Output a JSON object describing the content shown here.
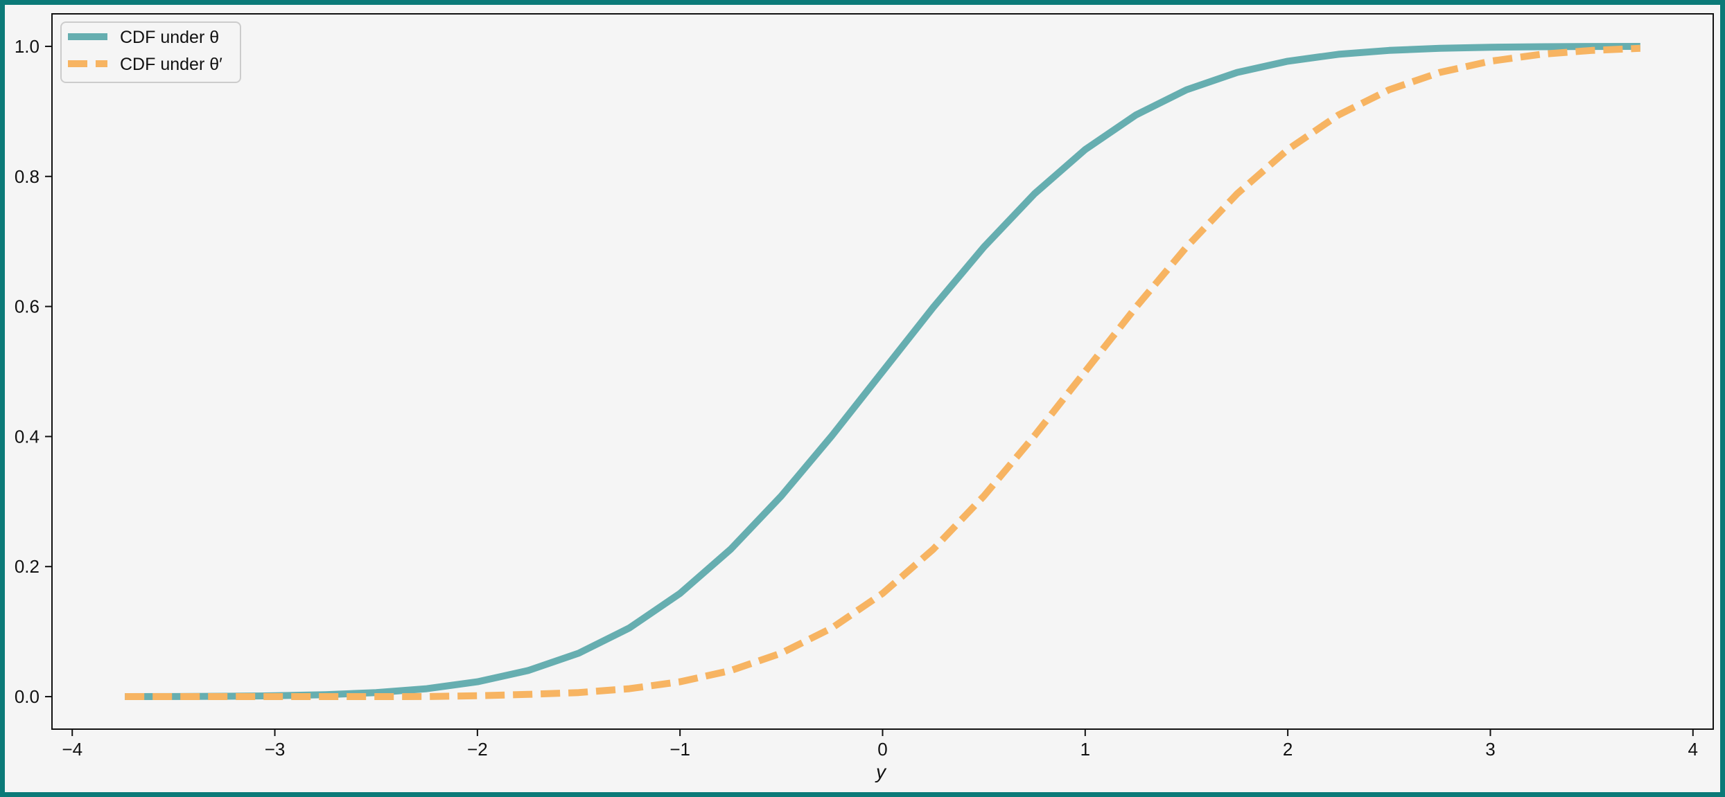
{
  "chart_data": {
    "type": "line",
    "title": "",
    "xlabel": "y",
    "ylabel": "",
    "xlim": [
      -4.1,
      4.1
    ],
    "ylim": [
      -0.05,
      1.05
    ],
    "xticks": [
      -4,
      -3,
      -2,
      -1,
      0,
      1,
      2,
      3,
      4
    ],
    "xtick_labels": [
      "−4",
      "−3",
      "−2",
      "−1",
      "0",
      "1",
      "2",
      "3",
      "4"
    ],
    "yticks": [
      0.0,
      0.2,
      0.4,
      0.6,
      0.8,
      1.0
    ],
    "ytick_labels": [
      "0.0",
      "0.2",
      "0.4",
      "0.6",
      "0.8",
      "1.0"
    ],
    "grid": false,
    "legend_position": "top-left",
    "series": [
      {
        "name": "CDF under θ",
        "style": "solid",
        "color": "#66aeb0",
        "x": [
          -3.74,
          -3.5,
          -3.25,
          -3.0,
          -2.75,
          -2.5,
          -2.25,
          -2.0,
          -1.75,
          -1.5,
          -1.25,
          -1.0,
          -0.75,
          -0.5,
          -0.25,
          0.0,
          0.25,
          0.5,
          0.75,
          1.0,
          1.25,
          1.5,
          1.75,
          2.0,
          2.25,
          2.5,
          2.75,
          3.0,
          3.25,
          3.5,
          3.74
        ],
        "y": [
          0.0001,
          0.0002,
          0.0006,
          0.0013,
          0.003,
          0.0062,
          0.0122,
          0.0228,
          0.0401,
          0.0668,
          0.1056,
          0.1587,
          0.2266,
          0.3085,
          0.4013,
          0.5,
          0.5987,
          0.6915,
          0.7734,
          0.8413,
          0.8944,
          0.9332,
          0.9599,
          0.9772,
          0.9878,
          0.9938,
          0.997,
          0.9987,
          0.9994,
          0.9998,
          0.9999
        ]
      },
      {
        "name": "CDF under θ′",
        "style": "dashed",
        "color": "#f7b462",
        "x": [
          -3.74,
          -3.5,
          -3.25,
          -3.0,
          -2.75,
          -2.5,
          -2.25,
          -2.0,
          -1.75,
          -1.5,
          -1.25,
          -1.0,
          -0.75,
          -0.5,
          -0.25,
          0.0,
          0.25,
          0.5,
          0.75,
          1.0,
          1.25,
          1.5,
          1.75,
          2.0,
          2.25,
          2.5,
          2.75,
          3.0,
          3.25,
          3.5,
          3.74
        ],
        "y": [
          0.0,
          0.0,
          0.0,
          0.0,
          0.0,
          0.0001,
          0.0002,
          0.0013,
          0.0035,
          0.0062,
          0.0122,
          0.0228,
          0.0401,
          0.0668,
          0.1056,
          0.1587,
          0.2266,
          0.3085,
          0.4013,
          0.5,
          0.5987,
          0.6915,
          0.7734,
          0.8413,
          0.8944,
          0.9332,
          0.9599,
          0.9772,
          0.9878,
          0.9938,
          0.997
        ]
      }
    ]
  }
}
